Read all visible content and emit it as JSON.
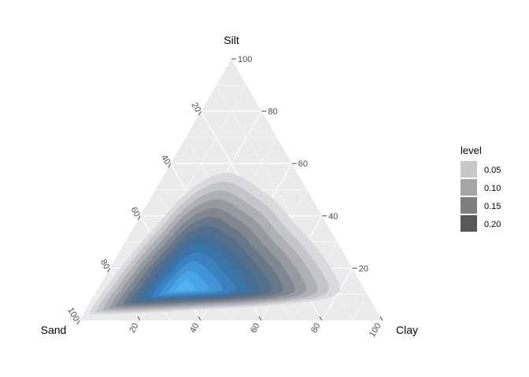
{
  "chart_data": {
    "type": "ternary-density",
    "vertices": {
      "top": "Silt",
      "left": "Sand",
      "right": "Clay"
    },
    "ticks": [
      20,
      40,
      60,
      80,
      100
    ],
    "grid": true,
    "panel_color": "#ebebeb",
    "gridline_color": "#ffffff",
    "legend": {
      "title": "level",
      "position": "right",
      "levels": [
        "0.05",
        "0.10",
        "0.15",
        "0.20"
      ],
      "colors": [
        "#c8c8c8",
        "#a5a5a5",
        "#7f7f7f",
        "#595959"
      ]
    },
    "density_mode": {
      "sand": 60,
      "silt": 12,
      "clay": 28
    },
    "contour_colors": [
      "#dadade",
      "#c5c6ca",
      "#aeb0b5",
      "#979aa1",
      "#808791",
      "#697888",
      "#546f8c",
      "#436f97",
      "#3a75a8",
      "#3b80bf",
      "#4292d6",
      "#4aa3e7",
      "#52b2f3"
    ]
  }
}
